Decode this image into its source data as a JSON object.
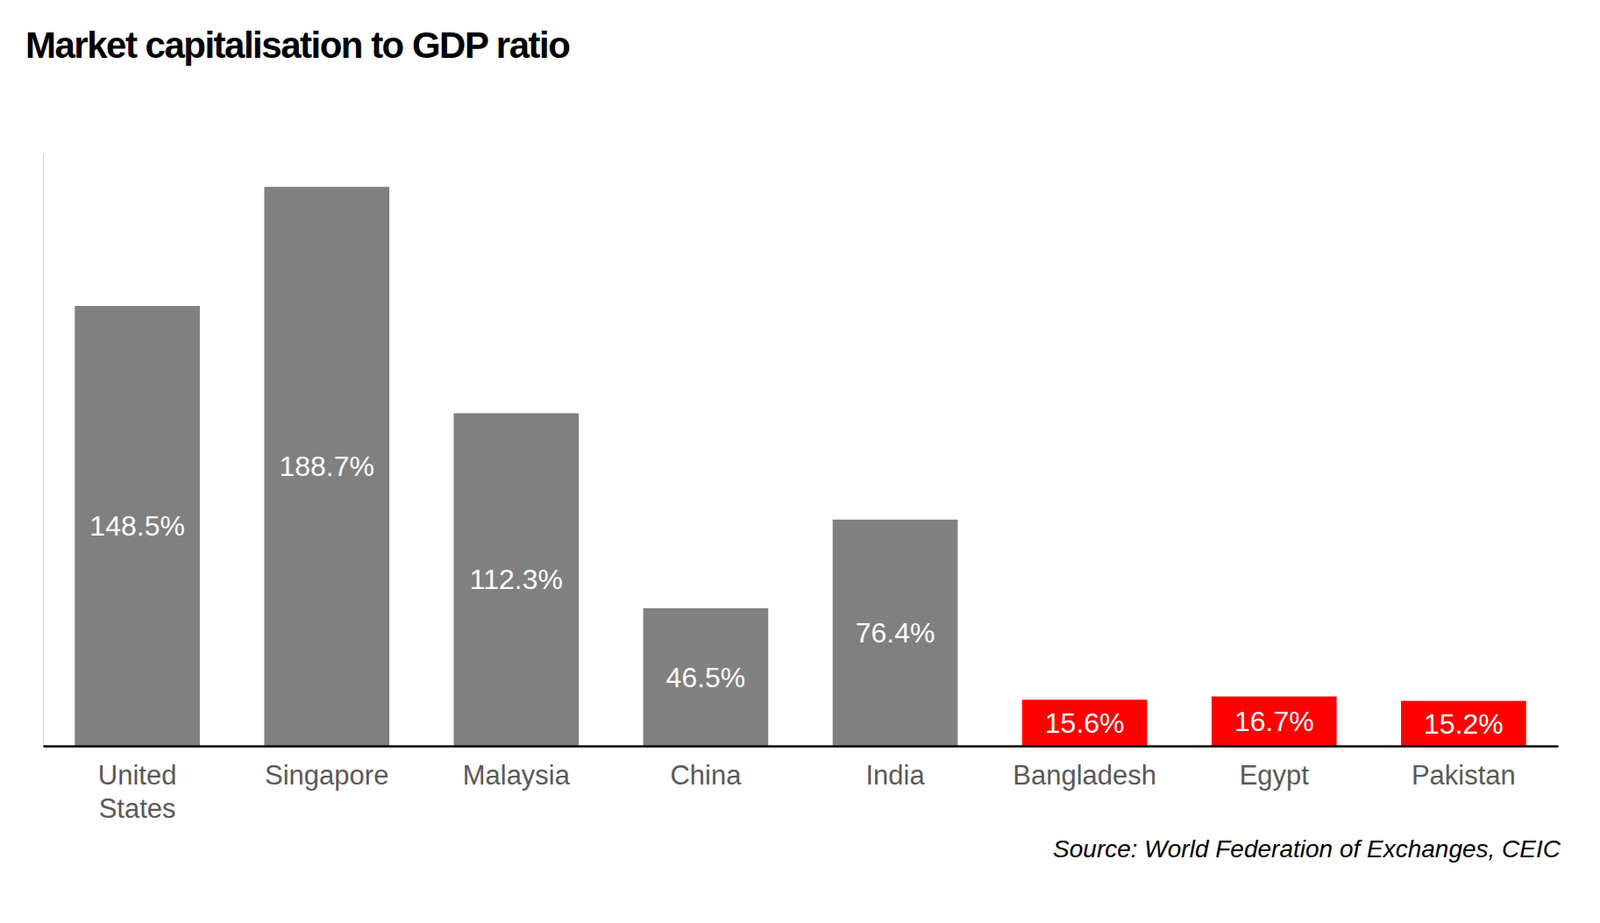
{
  "chart_data": {
    "type": "bar",
    "title": "Market capitalisation to GDP ratio",
    "source": "Source: World Federation of Exchanges, CEIC",
    "categories": [
      "United States",
      "Singapore",
      "Malaysia",
      "China",
      "India",
      "Bangladesh",
      "Egypt",
      "Pakistan"
    ],
    "values": [
      148.5,
      188.7,
      112.3,
      46.5,
      76.4,
      15.6,
      16.7,
      15.2
    ],
    "value_labels": [
      "148.5%",
      "188.7%",
      "112.3%",
      "46.5%",
      "76.4%",
      "15.6%",
      "16.7%",
      "15.2%"
    ],
    "colors": [
      "#808080",
      "#808080",
      "#808080",
      "#808080",
      "#808080",
      "#ff0000",
      "#ff0000",
      "#ff0000"
    ],
    "ylim": [
      0,
      200
    ],
    "yticks": [],
    "grid": false,
    "data_labels": true,
    "tick_labels": "x"
  }
}
